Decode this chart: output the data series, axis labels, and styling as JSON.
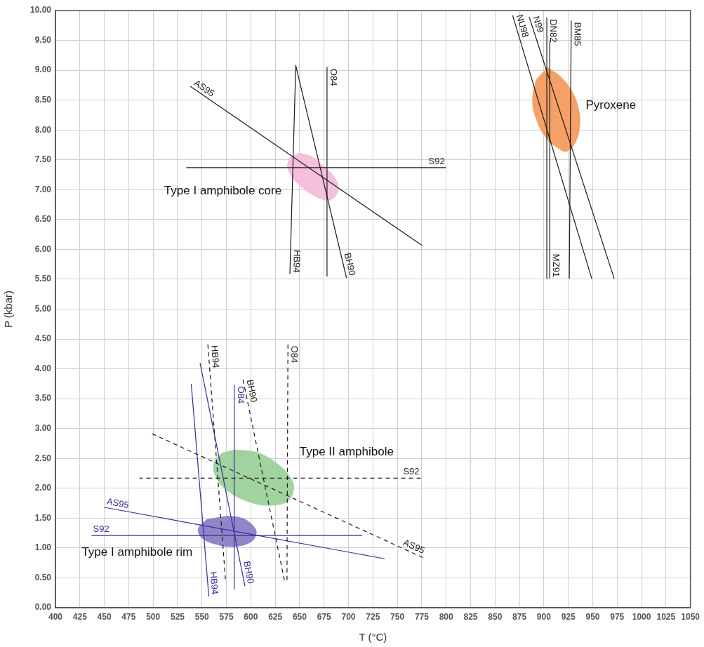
{
  "chart_data": {
    "type": "line",
    "xlabel": "T (°C)",
    "ylabel": "P (kbar)",
    "xlim": [
      400,
      1050
    ],
    "ylim": [
      0,
      10
    ],
    "xticks": [
      400,
      425,
      450,
      475,
      500,
      525,
      550,
      575,
      600,
      625,
      650,
      675,
      700,
      725,
      750,
      775,
      800,
      825,
      850,
      875,
      900,
      925,
      950,
      975,
      1000,
      1025,
      1050
    ],
    "yticks": [
      {
        "value": 0,
        "label": "0.00"
      },
      {
        "value": 0.5,
        "label": "0.50"
      },
      {
        "value": 1,
        "label": "1.00"
      },
      {
        "value": 1.5,
        "label": "1.50"
      },
      {
        "value": 2,
        "label": "2.00"
      },
      {
        "value": 2.5,
        "label": "2.50"
      },
      {
        "value": 3,
        "label": "3.00"
      },
      {
        "value": 3.5,
        "label": "3.50"
      },
      {
        "value": 4,
        "label": "4.00"
      },
      {
        "value": 4.5,
        "label": "4.50"
      },
      {
        "value": 5,
        "label": "5.00"
      },
      {
        "value": 5.5,
        "label": "5.50"
      },
      {
        "value": 6,
        "label": "6.00"
      },
      {
        "value": 6.5,
        "label": "6.50"
      },
      {
        "value": 7,
        "label": "7.00"
      },
      {
        "value": 7.5,
        "label": "7.50"
      },
      {
        "value": 8,
        "label": "8.00"
      },
      {
        "value": 8.5,
        "label": "8.50"
      },
      {
        "value": 9,
        "label": "9.00"
      },
      {
        "value": 9.5,
        "label": "9.50"
      },
      {
        "value": 10,
        "label": "10.00"
      }
    ],
    "grid": true,
    "legend": false,
    "marker": "none",
    "line_style": "solid",
    "series": [
      {
        "name": "AS95",
        "color": "#1a1a1a",
        "x": [
          538,
          775
        ],
        "values": [
          8.73,
          6.07
        ]
      },
      {
        "name": "S92",
        "color": "#1a1a1a",
        "x": [
          800,
          534
        ],
        "values": [
          7.37,
          7.37
        ]
      },
      {
        "name": "O84",
        "color": "#1a1a1a",
        "x": [
          678,
          678
        ],
        "values": [
          9.05,
          5.55
        ]
      },
      {
        "name": "HB94",
        "color": "#1a1a1a",
        "x": [
          640,
          646
        ],
        "values": [
          5.59,
          9.08
        ]
      },
      {
        "name": "BH90",
        "color": "#1a1a1a",
        "x": [
          698,
          646
        ],
        "values": [
          5.52,
          9.08
        ]
      },
      {
        "name": "NU98",
        "color": "#1a1a1a",
        "x": [
          868,
          949
        ],
        "values": [
          9.92,
          5.51
        ]
      },
      {
        "name": "N99",
        "color": "#1a1a1a",
        "x": [
          885,
          972
        ],
        "values": [
          9.89,
          5.51
        ]
      },
      {
        "name": "DN82",
        "color": "#1a1a1a",
        "x": [
          903,
          903
        ],
        "values": [
          9.88,
          5.51
        ]
      },
      {
        "name": "MZ91",
        "color": "#1a1a1a",
        "x": [
          906,
          906
        ],
        "values": [
          5.51,
          9.49
        ]
      },
      {
        "name": "BM85",
        "color": "#1a1a1a",
        "x": [
          928,
          926
        ],
        "values": [
          9.83,
          5.51
        ]
      },
      {
        "name": "HB94",
        "color": "#1a1a1a",
        "line_style": "dashed",
        "x": [
          556,
          574
        ],
        "values": [
          4.41,
          0.48
        ]
      },
      {
        "name": "O84",
        "color": "#1a1a1a",
        "line_style": "dashed",
        "x": [
          638,
          637
        ],
        "values": [
          4.41,
          0.42
        ]
      },
      {
        "name": "BH90",
        "color": "#1a1a1a",
        "line_style": "dashed",
        "x": [
          592,
          635
        ],
        "values": [
          3.82,
          0.41
        ]
      },
      {
        "name": "S92",
        "color": "#1a1a1a",
        "line_style": "dashed",
        "x": [
          774,
          486
        ],
        "values": [
          2.17,
          2.17
        ]
      },
      {
        "name": "AS95",
        "color": "#1a1a1a",
        "line_style": "dashed",
        "x": [
          776,
          498
        ],
        "values": [
          0.84,
          2.92
        ]
      },
      {
        "name": "O84",
        "color": "#3a2d9a",
        "x": [
          583,
          583
        ],
        "values": [
          3.73,
          0.31
        ]
      },
      {
        "name": "AS95",
        "color": "#3a2d9a",
        "x": [
          450,
          737
        ],
        "values": [
          1.68,
          0.82
        ]
      },
      {
        "name": "S92",
        "color": "#3a2d9a",
        "x": [
          437,
          714
        ],
        "values": [
          1.21,
          1.21
        ]
      },
      {
        "name": "HB94",
        "color": "#3a2d9a",
        "x": [
          557,
          539
        ],
        "values": [
          0.19,
          3.75
        ]
      },
      {
        "name": "BH90",
        "color": "#3a2d9a",
        "x": [
          594,
          548
        ],
        "values": [
          0.36,
          4.1
        ]
      },
      {
        "type": "area",
        "color": "#f5c0dc",
        "x": [
          649.8,
          662.9,
          674.8,
          685.5,
          689.6,
          686.8,
          678.4,
          667.7,
          653.4,
          642.6,
          637.2,
          640.3
        ],
        "values": [
          7.62,
          7.55,
          7.39,
          7.22,
          7.04,
          6.89,
          6.82,
          6.87,
          7.02,
          7.2,
          7.39,
          7.55
        ]
      },
      {
        "type": "area",
        "color": "#f4a066",
        "x": [
          903.7,
          918.0,
          930.1,
          935.9,
          937.0,
          933.5,
          923.9,
          913.2,
          902.4,
          892.9,
          888.1,
          891.7
        ],
        "values": [
          9.05,
          8.88,
          8.61,
          8.34,
          8.1,
          7.83,
          7.64,
          7.71,
          7.86,
          8.14,
          8.49,
          8.84
        ]
      },
      {
        "type": "area",
        "color": "#a0d3a0",
        "x": [
          584.1,
          607.1,
          627.5,
          641.6,
          644.1,
          637.7,
          619.8,
          599.5,
          576.4,
          563.7,
          562.4,
          571.3
        ],
        "values": [
          2.65,
          2.6,
          2.41,
          2.16,
          1.99,
          1.78,
          1.71,
          1.76,
          1.95,
          2.2,
          2.45,
          2.6
        ]
      },
      {
        "type": "area",
        "color": "#8f86c8",
        "x": [
          576.4,
          591.7,
          603.2,
          605.8,
          599.5,
          581.6,
          563.7,
          549.6,
          546.0,
          554.7
        ],
        "values": [
          1.54,
          1.5,
          1.36,
          1.24,
          1.09,
          1.02,
          1.06,
          1.17,
          1.32,
          1.48
        ]
      }
    ],
    "annotations": [
      "Type I amphibole core",
      "Pyroxene",
      "Type II amphibole",
      "Type I amphibole rim"
    ]
  }
}
